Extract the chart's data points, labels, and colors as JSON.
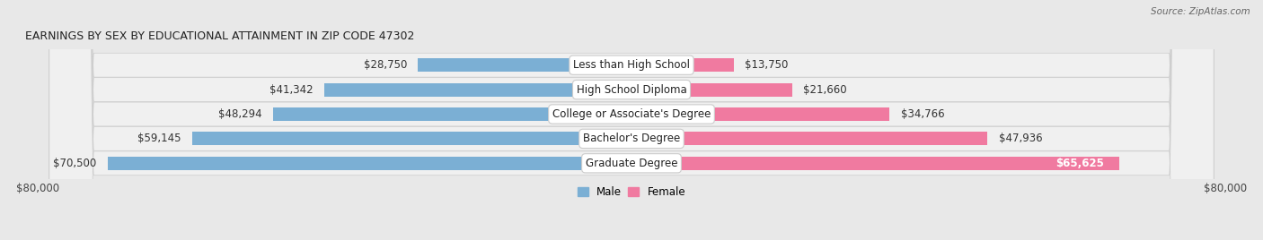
{
  "title": "EARNINGS BY SEX BY EDUCATIONAL ATTAINMENT IN ZIP CODE 47302",
  "source": "Source: ZipAtlas.com",
  "categories": [
    "Less than High School",
    "High School Diploma",
    "College or Associate's Degree",
    "Bachelor's Degree",
    "Graduate Degree"
  ],
  "male_values": [
    28750,
    41342,
    48294,
    59145,
    70500
  ],
  "female_values": [
    13750,
    21660,
    34766,
    47936,
    65625
  ],
  "male_color": "#7bafd4",
  "female_color": "#f07aa0",
  "male_label": "Male",
  "female_label": "Female",
  "x_max": 80000,
  "bar_height": 0.55,
  "bg_color": "#e8e8e8",
  "row_bg_light": "#f2f2f2",
  "row_bg_dark": "#e0e0e0",
  "axis_label_left": "$80,000",
  "axis_label_right": "$80,000"
}
